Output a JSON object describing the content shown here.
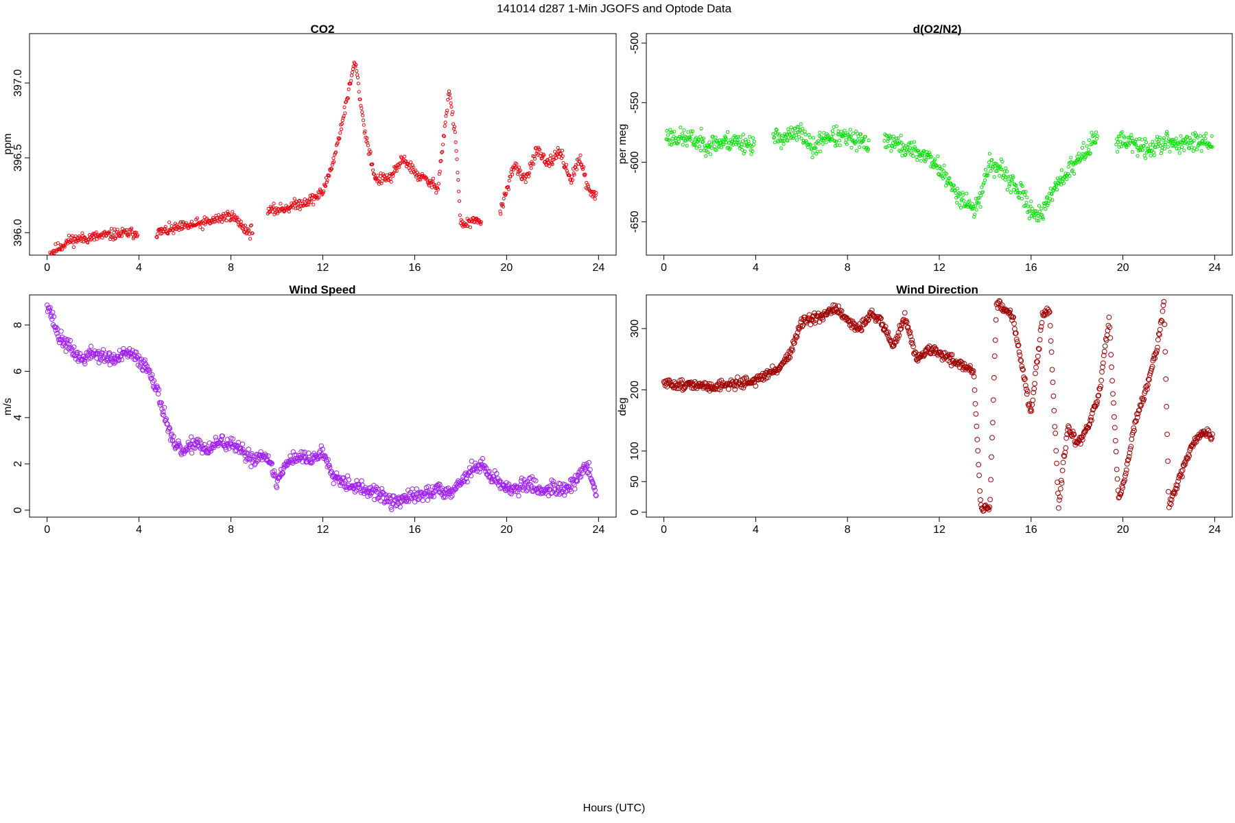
{
  "figure": {
    "title": "141014   d287   1-Min  JGOFS and Optode Data",
    "xlabel": "Hours (UTC)"
  },
  "chart_data": [
    {
      "type": "scatter",
      "title": "CO2",
      "xlabel": "",
      "ylabel": "ppm",
      "xlim": [
        0,
        24
      ],
      "ylim": [
        395.85,
        397.33
      ],
      "xticks": [
        0,
        4,
        8,
        12,
        16,
        20,
        24
      ],
      "yticks": [
        396.0,
        396.5,
        397.0
      ],
      "ytick_labels": [
        "396.0",
        "396.5",
        "397.0"
      ],
      "color": "#e8000b",
      "marker": "open-circle",
      "gaps": [
        [
          3.95,
          4.75
        ],
        [
          8.95,
          9.6
        ],
        [
          18.9,
          19.7
        ]
      ],
      "series": [
        {
          "x": [
            0.1,
            1.0,
            2.0,
            3.0,
            3.9,
            4.8,
            6.0,
            7.0,
            8.0,
            8.8,
            9.6,
            10.5,
            11.5,
            12.0,
            12.5,
            13.0,
            13.4,
            13.8,
            14.3,
            15.0,
            15.5,
            16.0,
            16.5,
            17.0,
            17.5,
            17.8,
            18.0,
            18.5,
            18.9,
            19.7,
            20.3,
            20.8,
            21.3,
            21.8,
            22.3,
            22.8,
            23.2,
            23.5,
            23.9
          ],
          "y": [
            395.86,
            395.95,
            395.97,
            395.99,
            396.0,
            396.0,
            396.04,
            396.07,
            396.12,
            396.0,
            396.14,
            396.17,
            396.22,
            396.27,
            396.5,
            396.85,
            397.15,
            396.7,
            396.35,
            396.37,
            396.5,
            396.4,
            396.35,
            396.3,
            396.95,
            396.6,
            396.05,
            396.07,
            396.08,
            396.12,
            396.45,
            396.35,
            396.55,
            396.45,
            396.55,
            396.35,
            396.5,
            396.3,
            396.25
          ]
        }
      ]
    },
    {
      "type": "scatter",
      "title": "d(O2/N2)",
      "xlabel": "",
      "ylabel": "per meg",
      "xlim": [
        0,
        24
      ],
      "ylim": [
        -678,
        -492
      ],
      "xticks": [
        0,
        4,
        8,
        12,
        16,
        20,
        24
      ],
      "yticks": [
        -650,
        -600,
        -550,
        -500
      ],
      "ytick_labels": [
        "-650",
        "-600",
        "-550",
        "-500"
      ],
      "color": "#00e000",
      "marker": "open-circle",
      "gaps": [
        [
          3.95,
          4.75
        ],
        [
          8.95,
          9.6
        ],
        [
          18.9,
          19.7
        ]
      ],
      "series": [
        {
          "x": [
            0.1,
            1.0,
            2.0,
            3.0,
            3.9,
            4.8,
            5.5,
            6.0,
            6.5,
            7.0,
            8.0,
            8.9,
            9.6,
            10.5,
            11.5,
            12.0,
            12.5,
            13.0,
            13.6,
            14.2,
            14.8,
            15.5,
            16.0,
            16.5,
            17.0,
            17.5,
            18.0,
            18.8,
            19.7,
            20.5,
            21.0,
            21.5,
            22.0,
            22.8,
            23.5,
            23.9
          ],
          "y": [
            -578,
            -580,
            -585,
            -582,
            -585,
            -580,
            -578,
            -575,
            -590,
            -578,
            -580,
            -585,
            -580,
            -588,
            -595,
            -605,
            -620,
            -630,
            -640,
            -600,
            -610,
            -625,
            -640,
            -645,
            -620,
            -610,
            -600,
            -580,
            -580,
            -585,
            -590,
            -585,
            -583,
            -585,
            -580,
            -585
          ]
        }
      ]
    },
    {
      "type": "scatter",
      "title": "Wind Speed",
      "xlabel": "",
      "ylabel": "m/s",
      "xlim": [
        0,
        24
      ],
      "ylim": [
        -0.3,
        9.3
      ],
      "xticks": [
        0,
        4,
        8,
        12,
        16,
        20,
        24
      ],
      "yticks": [
        0,
        2,
        4,
        6,
        8
      ],
      "ytick_labels": [
        "0",
        "2",
        "4",
        "6",
        "8"
      ],
      "color": "#a020f0",
      "marker": "open-circle",
      "gaps": [],
      "series": [
        {
          "x": [
            0.0,
            0.5,
            1.0,
            1.5,
            2.0,
            2.5,
            3.0,
            3.5,
            4.0,
            4.5,
            5.0,
            5.5,
            6.0,
            6.5,
            7.0,
            7.5,
            8.0,
            8.5,
            9.0,
            9.5,
            10.0,
            10.5,
            11.0,
            11.5,
            12.0,
            12.5,
            13.0,
            13.5,
            14.0,
            14.5,
            15.0,
            15.5,
            16.0,
            16.5,
            17.0,
            17.5,
            18.0,
            18.5,
            19.0,
            19.5,
            20.0,
            20.5,
            21.0,
            21.5,
            22.0,
            22.5,
            23.0,
            23.5,
            23.9
          ],
          "y": [
            9.0,
            7.5,
            7.0,
            6.5,
            6.8,
            6.6,
            6.5,
            6.8,
            6.5,
            6.0,
            4.5,
            2.8,
            2.5,
            3.0,
            2.5,
            3.0,
            2.8,
            2.5,
            2.2,
            2.5,
            1.2,
            2.2,
            2.3,
            2.2,
            2.5,
            1.5,
            1.2,
            1.0,
            0.8,
            0.7,
            0.3,
            0.5,
            0.6,
            0.7,
            0.9,
            0.8,
            1.2,
            1.8,
            1.9,
            1.3,
            1.0,
            0.9,
            1.2,
            0.8,
            1.0,
            0.9,
            1.2,
            2.0,
            0.6
          ]
        }
      ]
    },
    {
      "type": "scatter",
      "title": "Wind Direction",
      "xlabel": "",
      "ylabel": "deg",
      "xlim": [
        0,
        24
      ],
      "ylim": [
        -8,
        355
      ],
      "xticks": [
        0,
        4,
        8,
        12,
        16,
        20,
        24
      ],
      "yticks": [
        0,
        50,
        100,
        200,
        300
      ],
      "ytick_labels": [
        "0",
        "50",
        "100",
        "200",
        "300"
      ],
      "color": "#a00000",
      "marker": "open-circle",
      "gaps": [],
      "series": [
        {
          "x": [
            0.0,
            1.0,
            2.0,
            3.0,
            4.0,
            5.0,
            5.5,
            6.0,
            6.5,
            7.0,
            7.5,
            8.0,
            8.5,
            9.0,
            9.5,
            10.0,
            10.5,
            11.0,
            11.5,
            12.0,
            12.5,
            13.0,
            13.5,
            13.8,
            14.2,
            14.5,
            14.9,
            15.2,
            15.6,
            16.0,
            16.5,
            16.8,
            17.2,
            17.6,
            18.0,
            18.5,
            19.0,
            19.4,
            19.8,
            20.0,
            20.5,
            21.0,
            21.5,
            21.8,
            22.0,
            22.5,
            23.0,
            23.5,
            23.9
          ],
          "y": [
            210,
            208,
            205,
            210,
            215,
            235,
            260,
            310,
            315,
            320,
            335,
            310,
            300,
            325,
            310,
            270,
            320,
            250,
            265,
            260,
            250,
            240,
            230,
            10,
            5,
            345,
            330,
            320,
            240,
            160,
            320,
            330,
            10,
            140,
            110,
            140,
            200,
            320,
            20,
            40,
            140,
            200,
            270,
            340,
            10,
            60,
            110,
            130,
            125
          ]
        }
      ]
    }
  ]
}
